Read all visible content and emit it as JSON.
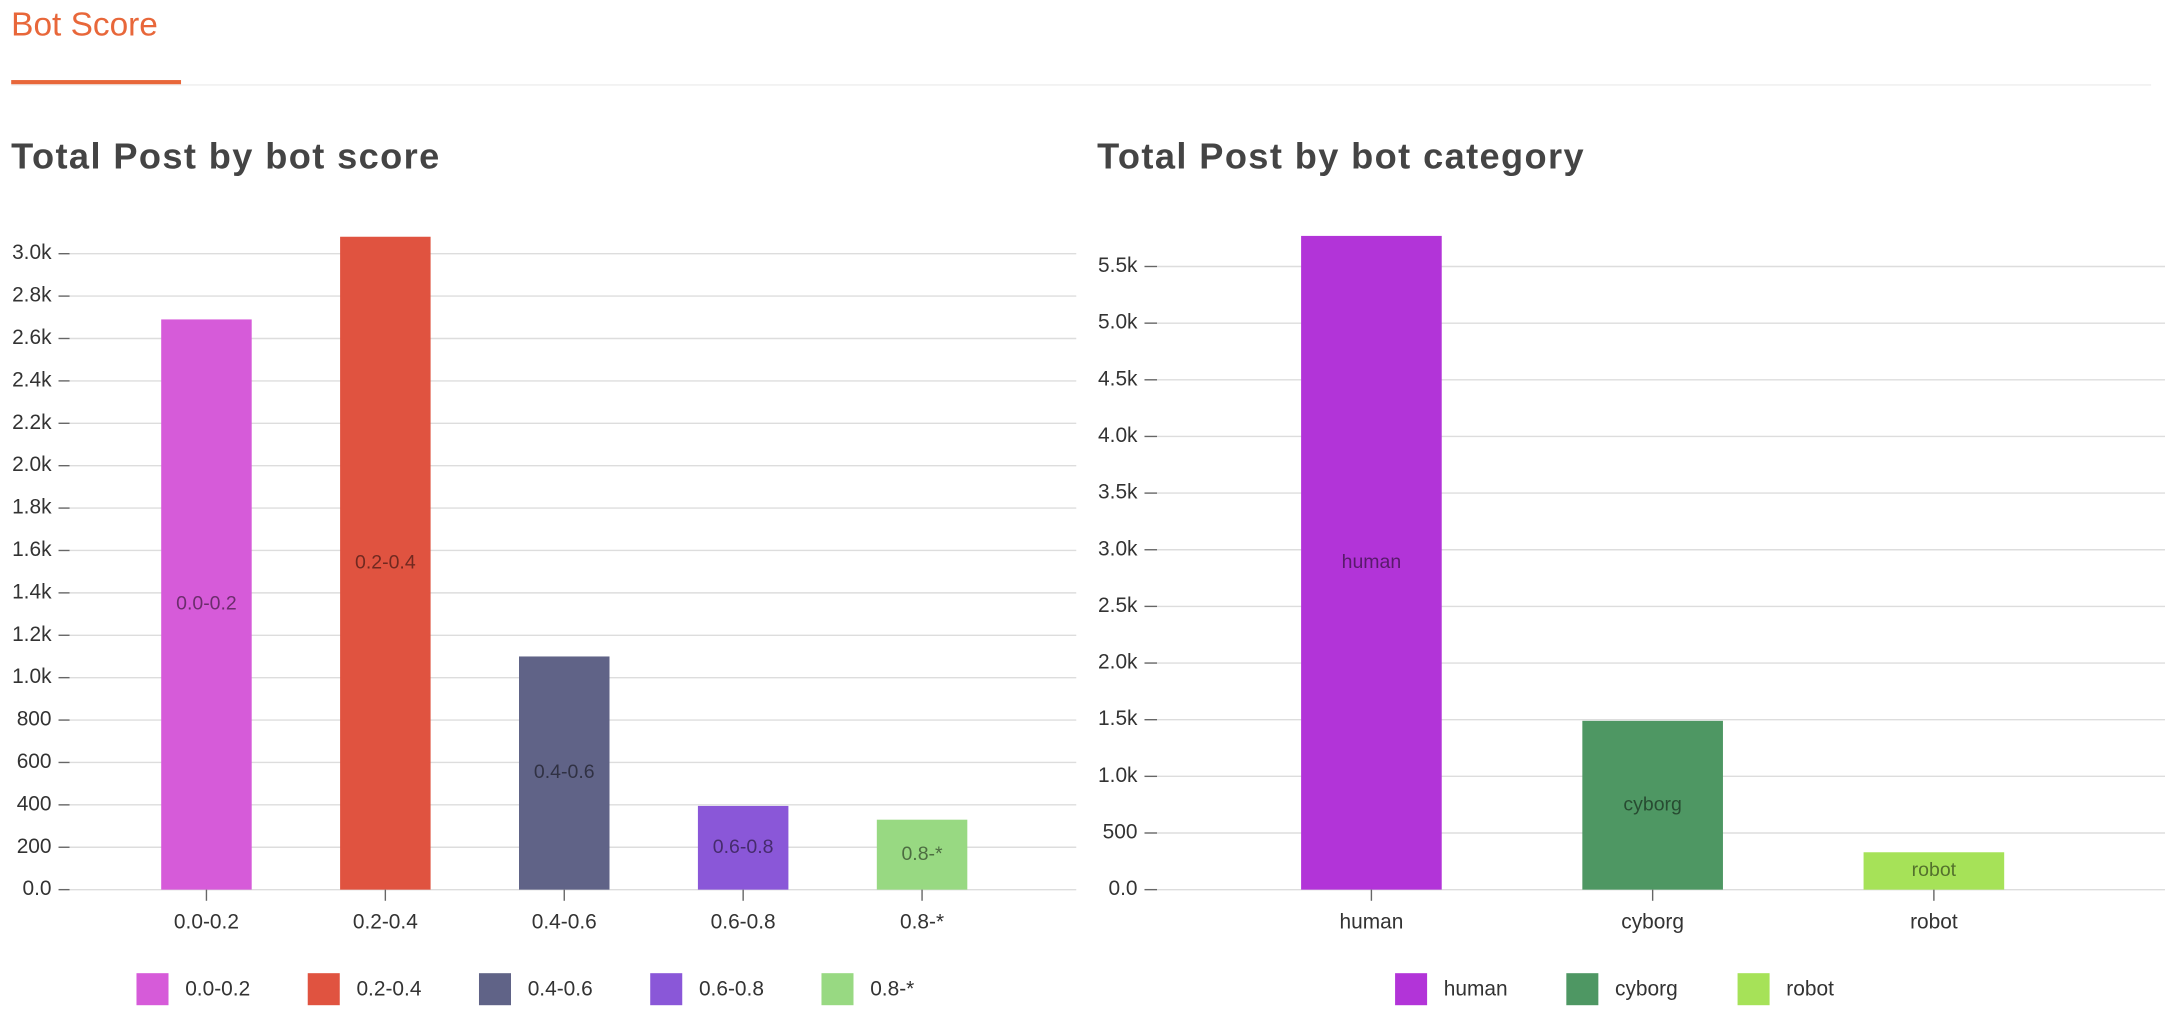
{
  "header": {
    "title": "Bot Score"
  },
  "chart_data": [
    {
      "type": "bar",
      "title": "Total Post by bot score",
      "categories": [
        "0.0-0.2",
        "0.2-0.4",
        "0.4-0.6",
        "0.6-0.8",
        "0.8-*"
      ],
      "values": [
        2690,
        3080,
        1100,
        395,
        330
      ],
      "colors": [
        "#d65bd9",
        "#e05340",
        "#606387",
        "#8a57d8",
        "#98d982"
      ],
      "ylim": [
        0,
        3100
      ],
      "yticks": [
        {
          "value": 0,
          "label": "0.0"
        },
        200,
        400,
        600,
        800,
        {
          "value": 1000,
          "label": "1.0k"
        },
        {
          "value": 1200,
          "label": "1.2k"
        },
        {
          "value": 1400,
          "label": "1.4k"
        },
        {
          "value": 1600,
          "label": "1.6k"
        },
        {
          "value": 1800,
          "label": "1.8k"
        },
        {
          "value": 2000,
          "label": "2.0k"
        },
        {
          "value": 2200,
          "label": "2.2k"
        },
        {
          "value": 2400,
          "label": "2.4k"
        },
        {
          "value": 2600,
          "label": "2.6k"
        },
        {
          "value": 2800,
          "label": "2.8k"
        },
        {
          "value": 3000,
          "label": "3.0k"
        }
      ],
      "grid": true
    },
    {
      "type": "bar",
      "title": "Total Post by bot category",
      "categories": [
        "human",
        "cyborg",
        "robot"
      ],
      "values": [
        5770,
        1490,
        330
      ],
      "colors": [
        "#b234d8",
        "#4e9763",
        "#a6e258"
      ],
      "ylim": [
        0,
        5800
      ],
      "yticks": [
        {
          "value": 0,
          "label": "0.0"
        },
        500,
        {
          "value": 1000,
          "label": "1.0k"
        },
        {
          "value": 1500,
          "label": "1.5k"
        },
        {
          "value": 2000,
          "label": "2.0k"
        },
        {
          "value": 2500,
          "label": "2.5k"
        },
        {
          "value": 3000,
          "label": "3.0k"
        },
        {
          "value": 3500,
          "label": "3.5k"
        },
        {
          "value": 4000,
          "label": "4.0k"
        },
        {
          "value": 4500,
          "label": "4.5k"
        },
        {
          "value": 5000,
          "label": "5.0k"
        },
        {
          "value": 5500,
          "label": "5.5k"
        }
      ],
      "grid": true
    }
  ]
}
